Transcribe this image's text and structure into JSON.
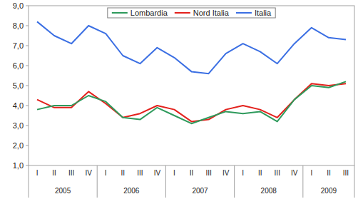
{
  "chart_data": {
    "type": "line",
    "categories": [
      "I",
      "II",
      "III",
      "IV",
      "I",
      "II",
      "III",
      "IV",
      "I",
      "II",
      "III",
      "IV",
      "I",
      "II",
      "III",
      "IV",
      "I",
      "II",
      "III"
    ],
    "category_groups": [
      {
        "label": "2005",
        "size": 4
      },
      {
        "label": "2006",
        "size": 4
      },
      {
        "label": "2007",
        "size": 4
      },
      {
        "label": "2008",
        "size": 4
      },
      {
        "label": "2009",
        "size": 3
      }
    ],
    "series": [
      {
        "name": "Lombardia",
        "color": "#2e9a5c",
        "values": [
          3.8,
          4.0,
          4.0,
          4.5,
          4.2,
          3.4,
          3.3,
          3.9,
          3.5,
          3.1,
          3.4,
          3.7,
          3.6,
          3.7,
          3.2,
          4.3,
          5.0,
          4.9,
          5.2
        ]
      },
      {
        "name": "Nord Italia",
        "color": "#e3211c",
        "values": [
          4.3,
          3.9,
          3.9,
          4.7,
          4.1,
          3.4,
          3.6,
          4.0,
          3.8,
          3.2,
          3.3,
          3.8,
          4.0,
          3.8,
          3.4,
          4.3,
          5.1,
          5.0,
          5.1
        ]
      },
      {
        "name": "Italia",
        "color": "#3b6fe3",
        "values": [
          8.2,
          7.5,
          7.1,
          8.0,
          7.6,
          6.5,
          6.1,
          6.9,
          6.4,
          5.7,
          5.6,
          6.6,
          7.1,
          6.7,
          6.1,
          7.1,
          7.9,
          7.4,
          7.3
        ]
      }
    ],
    "ylim": [
      1,
      9
    ],
    "yticks": [
      {
        "value": 1,
        "label": "1,0"
      },
      {
        "value": 2,
        "label": "2,0"
      },
      {
        "value": 3,
        "label": "3,0"
      },
      {
        "value": 4,
        "label": "4,0"
      },
      {
        "value": 5,
        "label": "5,0"
      },
      {
        "value": 6,
        "label": "6,0"
      },
      {
        "value": 7,
        "label": "7,0"
      },
      {
        "value": 8,
        "label": "8,0"
      },
      {
        "value": 9,
        "label": "9,0"
      }
    ],
    "grid": false,
    "legend": "top"
  }
}
